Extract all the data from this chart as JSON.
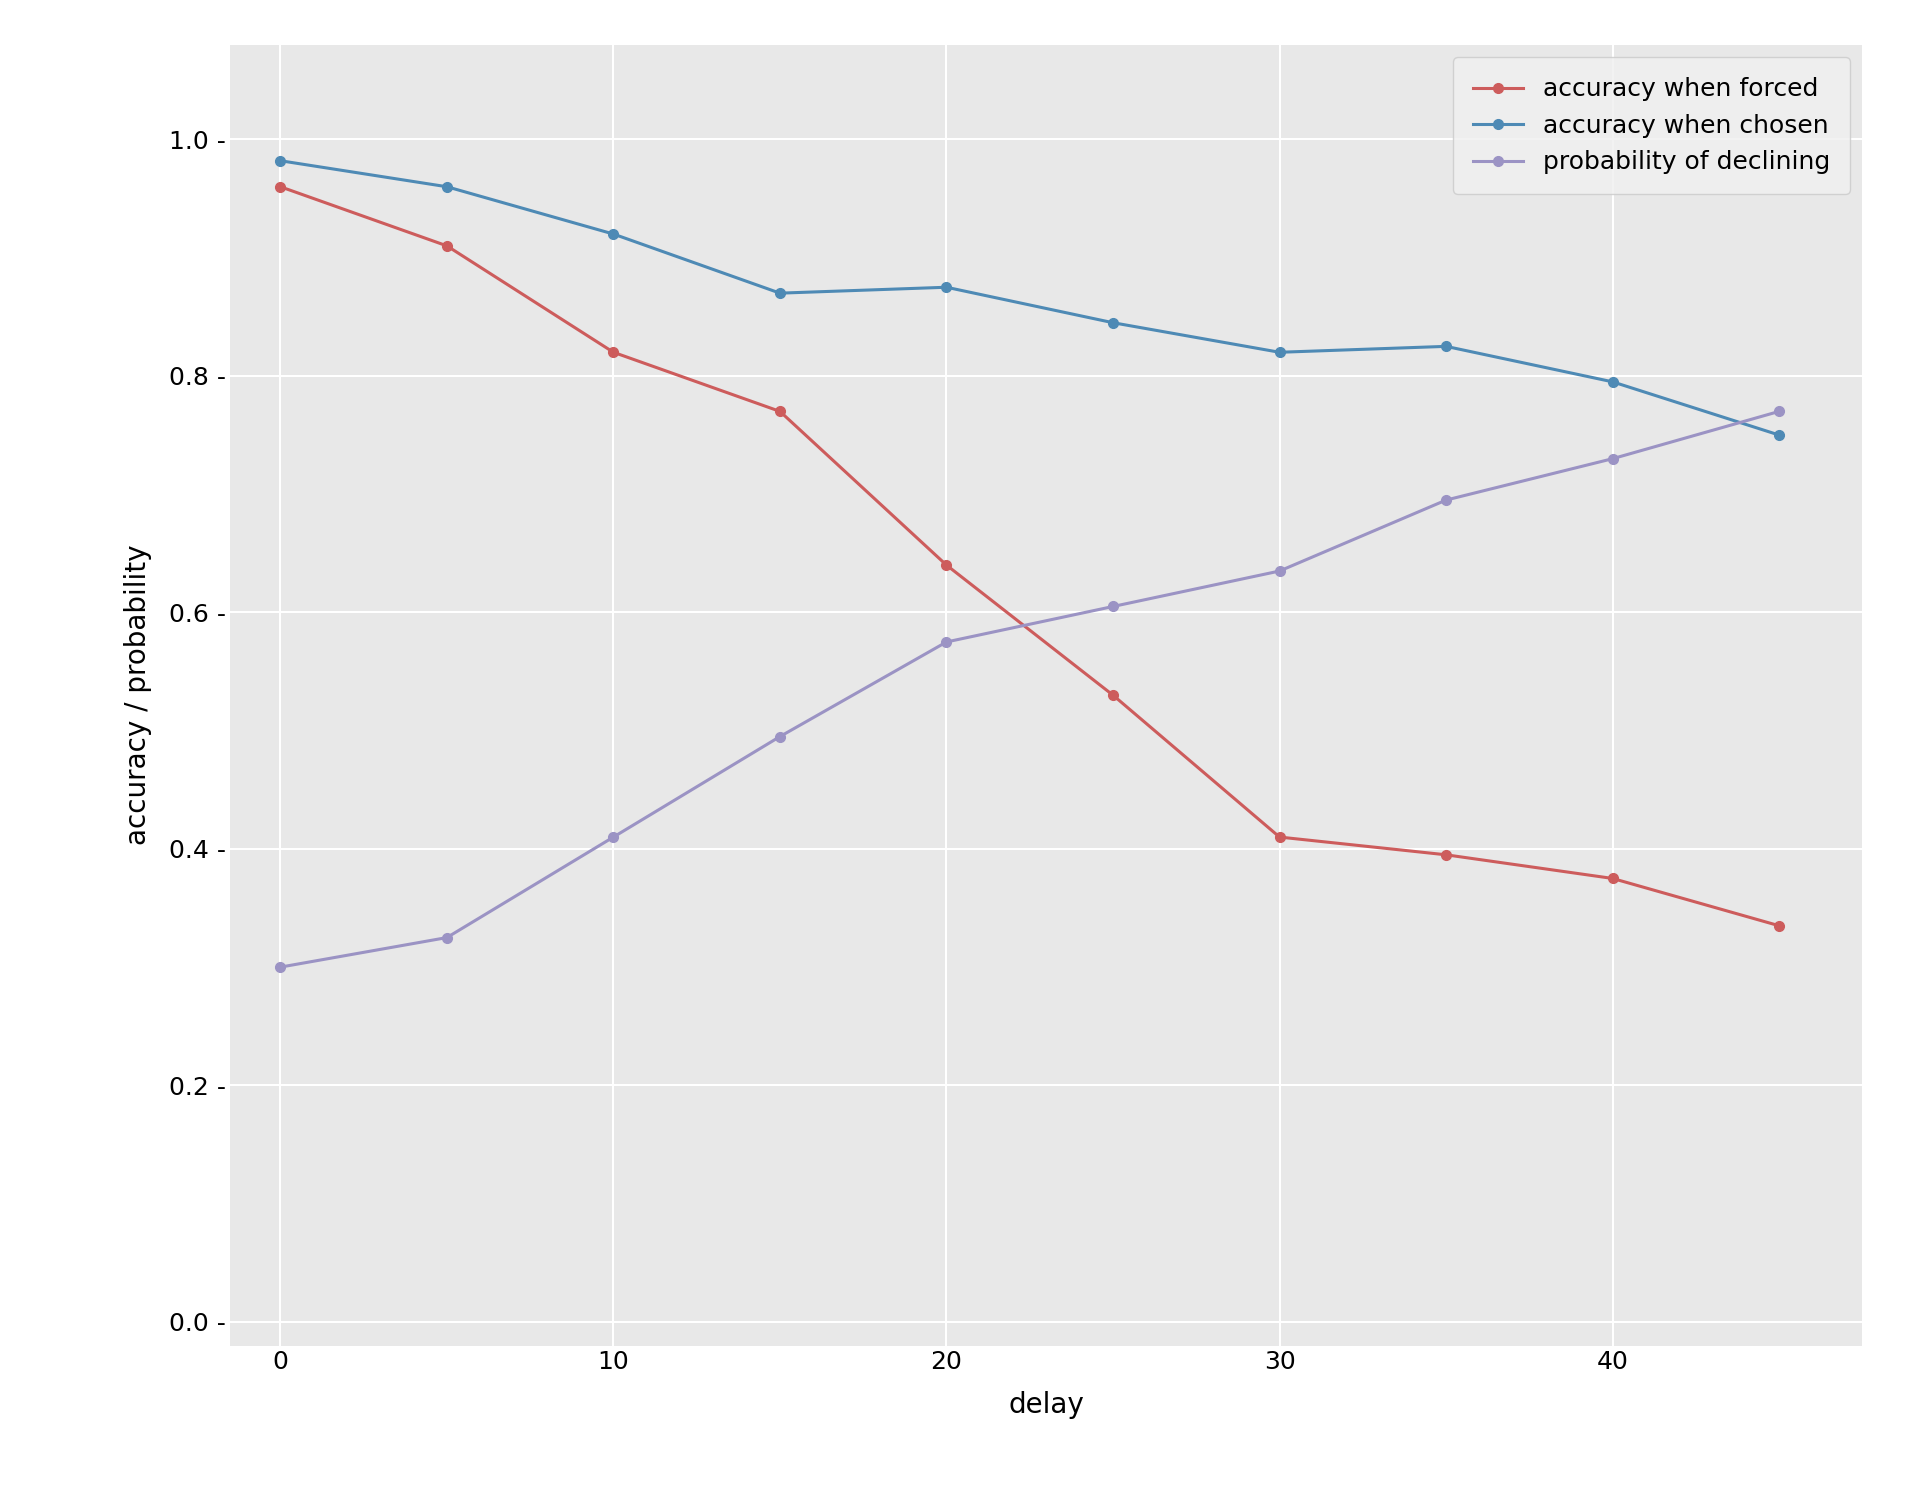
{
  "x": [
    0,
    5,
    10,
    15,
    20,
    25,
    30,
    35,
    40,
    45
  ],
  "accuracy_forced": [
    0.96,
    0.91,
    0.82,
    0.77,
    0.64,
    0.53,
    0.41,
    0.395,
    0.375,
    0.335
  ],
  "accuracy_chosen": [
    0.982,
    0.96,
    0.92,
    0.87,
    0.875,
    0.845,
    0.82,
    0.825,
    0.795,
    0.75
  ],
  "prob_declining": [
    0.3,
    0.325,
    0.41,
    0.495,
    0.575,
    0.605,
    0.635,
    0.695,
    0.73,
    0.77
  ],
  "color_forced": "#cd5c5c",
  "color_chosen": "#4e8ab5",
  "color_declining": "#9b93c4",
  "xlabel": "delay",
  "ylabel": "accuracy / probability",
  "legend_forced": "accuracy when forced",
  "legend_chosen": "accuracy when chosen",
  "legend_declining": "probability of declining",
  "ylim": [
    -0.02,
    1.08
  ],
  "xlim": [
    -1.5,
    47.5
  ],
  "xticks": [
    0,
    10,
    20,
    30,
    40
  ],
  "yticks": [
    0.0,
    0.2,
    0.4,
    0.6,
    0.8,
    1.0
  ],
  "plot_background_color": "#e8e8e8",
  "figure_background_color": "#ffffff",
  "grid_color": "#ffffff",
  "marker": "o",
  "marker_size": 7,
  "linewidth": 2.2,
  "legend_fontsize": 18,
  "axis_label_fontsize": 20,
  "tick_fontsize": 18
}
